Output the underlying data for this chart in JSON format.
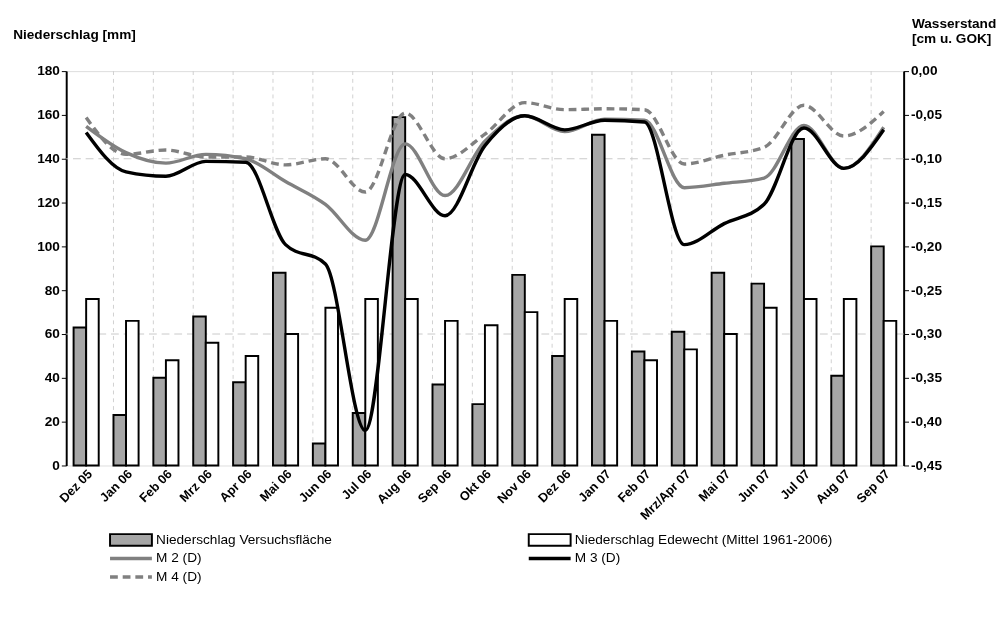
{
  "chart_data": {
    "type": "bar",
    "ylabel": "Niederschlag [mm]",
    "y2label": "Wasserstand\n[cm u. GOK]",
    "categories": [
      "Dez 05",
      "Jan 06",
      "Feb 06",
      "Mrz 06",
      "Apr 06",
      "Mai 06",
      "Jun 06",
      "Jul 06",
      "Aug 06",
      "Sep 06",
      "Okt 06",
      "Nov 06",
      "Dez 06",
      "Jan 07",
      "Feb 07",
      "Mrz/Apr 07",
      "Mai 07",
      "Jun 07",
      "Jul 07",
      "Aug 07",
      "Sep 07"
    ],
    "series": [
      {
        "name": "Niederschlag Versuchsfläche",
        "color": "#a6a6a6",
        "values": [
          63,
          23,
          40,
          68,
          38,
          88,
          10,
          24,
          159,
          37,
          28,
          87,
          50,
          151,
          52,
          61,
          88,
          83,
          149,
          41,
          100
        ]
      },
      {
        "name": "Niederschlag Edewecht (Mittel 1961-2006)",
        "color": "#ffffff",
        "values": [
          76,
          66,
          48,
          56,
          50,
          60,
          72,
          76,
          76,
          66,
          64,
          70,
          76,
          66,
          48,
          53,
          60,
          72,
          76,
          76,
          66
        ]
      },
      {
        "name": "M 2 (D)",
        "type": "line",
        "axis": "y2",
        "color": "#808080",
        "line_style": "solid",
        "values": [
          -0.063,
          -0.093,
          -0.105,
          -0.095,
          -0.1,
          -0.126,
          -0.152,
          -0.193,
          -0.083,
          -0.142,
          -0.08,
          -0.051,
          -0.069,
          -0.055,
          -0.056,
          -0.133,
          -0.128,
          -0.122,
          -0.062,
          -0.111,
          -0.064
        ]
      },
      {
        "name": "M 3 (D)",
        "type": "line",
        "axis": "y2",
        "color": "#000000",
        "line_style": "solid",
        "values": [
          -0.07,
          -0.115,
          -0.12,
          -0.103,
          -0.104,
          -0.198,
          -0.22,
          -0.41,
          -0.118,
          -0.165,
          -0.085,
          -0.051,
          -0.067,
          -0.056,
          -0.058,
          -0.198,
          -0.174,
          -0.152,
          -0.065,
          -0.111,
          -0.067
        ]
      },
      {
        "name": "M 4 (D)",
        "type": "line",
        "axis": "y2",
        "color": "#808080",
        "line_style": "dashed",
        "values": [
          -0.053,
          -0.095,
          -0.09,
          -0.098,
          -0.098,
          -0.107,
          -0.1,
          -0.138,
          -0.048,
          -0.1,
          -0.072,
          -0.036,
          -0.044,
          -0.043,
          -0.044,
          -0.106,
          -0.096,
          -0.087,
          -0.039,
          -0.074,
          -0.046
        ]
      }
    ],
    "ylim": [
      0,
      180
    ],
    "yticks": [
      0,
      20,
      40,
      60,
      80,
      100,
      120,
      140,
      160,
      180
    ],
    "y2lim": [
      -0.45,
      0
    ],
    "y2ticks": [
      {
        "value": 0,
        "label": "0,00"
      },
      {
        "value": -0.05,
        "label": "-0,05"
      },
      {
        "value": -0.1,
        "label": "-0,10"
      },
      {
        "value": -0.15,
        "label": "-0,15"
      },
      {
        "value": -0.2,
        "label": "-0,20"
      },
      {
        "value": -0.25,
        "label": "-0,25"
      },
      {
        "value": -0.3,
        "label": "-0,30"
      },
      {
        "value": -0.35,
        "label": "-0,35"
      },
      {
        "value": -0.4,
        "label": "-0,40"
      },
      {
        "value": -0.45,
        "label": "-0,45"
      }
    ],
    "grid": "x",
    "ref_lines": [
      {
        "axis": "y",
        "value": 140,
        "color": "#c8c8c8",
        "line_style": "dashed"
      },
      {
        "axis": "y",
        "value": 60,
        "color": "#c8c8c8",
        "line_style": "dashed"
      }
    ],
    "legend": "bottom"
  }
}
